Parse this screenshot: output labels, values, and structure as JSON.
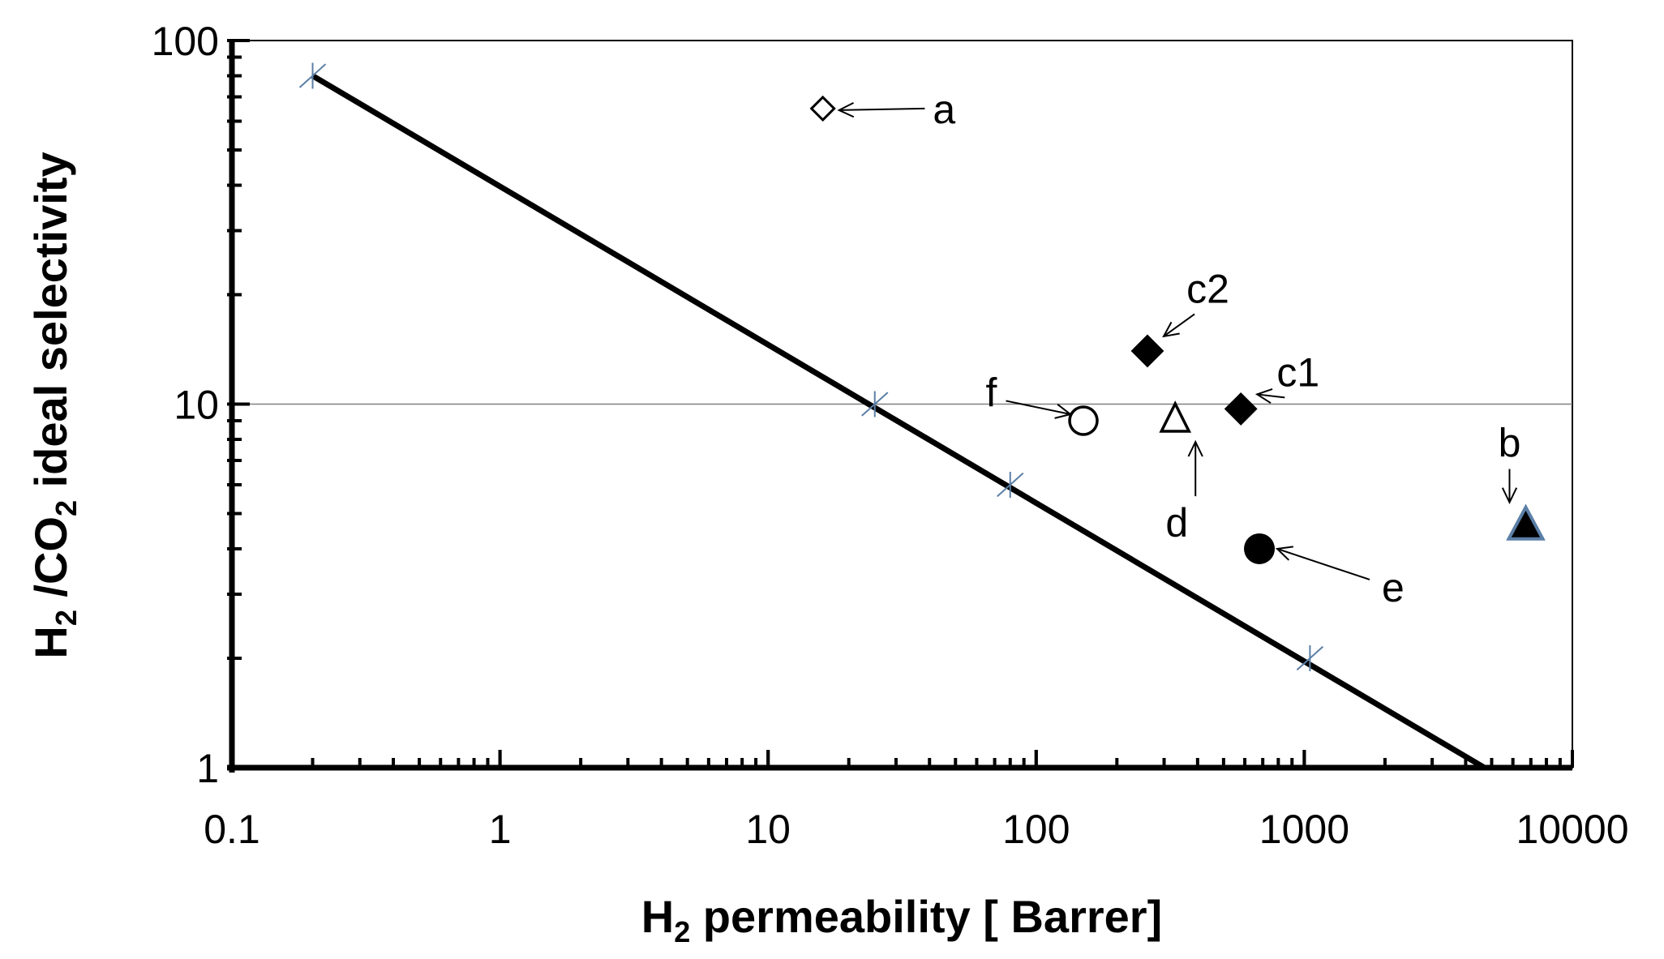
{
  "chart_data": {
    "type": "scatter",
    "title": "",
    "xlabel": {
      "main": "H",
      "sub": "2",
      "rest": " permeability  [ Barrer]"
    },
    "ylabel": {
      "p1": "H",
      "s1": "2",
      "p2": " /CO",
      "s2": "2",
      "p3": " ideal selectivity"
    },
    "x_scale": "log",
    "y_scale": "log",
    "xlim": [
      0.1,
      10000
    ],
    "ylim": [
      1,
      100
    ],
    "x_ticks": [
      "0.1",
      "1",
      "10",
      "100",
      "1000",
      "10000"
    ],
    "x_tick_values": [
      0.1,
      1,
      10,
      100,
      1000,
      10000
    ],
    "y_ticks": [
      "1",
      "10",
      "100"
    ],
    "y_tick_values": [
      1,
      10,
      100
    ],
    "gridlines_y": [
      10
    ],
    "upper_bound": {
      "x": [
        0.2,
        4700
      ],
      "y": [
        80,
        1
      ],
      "markers": [
        {
          "x": 0.2,
          "y": 80
        },
        {
          "x": 25,
          "y": 10
        },
        {
          "x": 80,
          "y": 6
        },
        {
          "x": 1050,
          "y": 2
        }
      ]
    },
    "points": [
      {
        "label": "a",
        "x": 16,
        "y": 65,
        "marker": "diamond-open",
        "label_x": 22,
        "label_y": 65,
        "label_pos": "right"
      },
      {
        "label": "c2",
        "x": 260,
        "y": 14,
        "marker": "diamond-filled",
        "label_x": 295,
        "label_y": 19,
        "label_pos": "above-right"
      },
      {
        "label": "c1",
        "x": 580,
        "y": 9.7,
        "marker": "diamond-filled",
        "label_x": 640,
        "label_y": 11.2,
        "label_pos": "above-right"
      },
      {
        "label": "f",
        "x": 150,
        "y": 9.0,
        "marker": "circle-open",
        "label_x": 130,
        "label_y": 9.6,
        "label_pos": "left"
      },
      {
        "label": "d",
        "x": 330,
        "y": 9.0,
        "marker": "triangle-open",
        "label_x": 330,
        "label_y": 7.4,
        "label_pos": "below"
      },
      {
        "label": "b",
        "x": 6700,
        "y": 4.6,
        "marker": "triangle-filled-blue-edge",
        "label_x": 6700,
        "label_y": 5.4,
        "label_pos": "above"
      },
      {
        "label": "e",
        "x": 680,
        "y": 4.0,
        "marker": "circle-filled",
        "label_x": 760,
        "label_y": 4.0,
        "label_pos": "below-right"
      }
    ],
    "grid": false,
    "legend": "none",
    "colors": {
      "line": "#000000",
      "bound_marker": "#5b7fa6",
      "b_edge": "#5b7fa6"
    }
  }
}
